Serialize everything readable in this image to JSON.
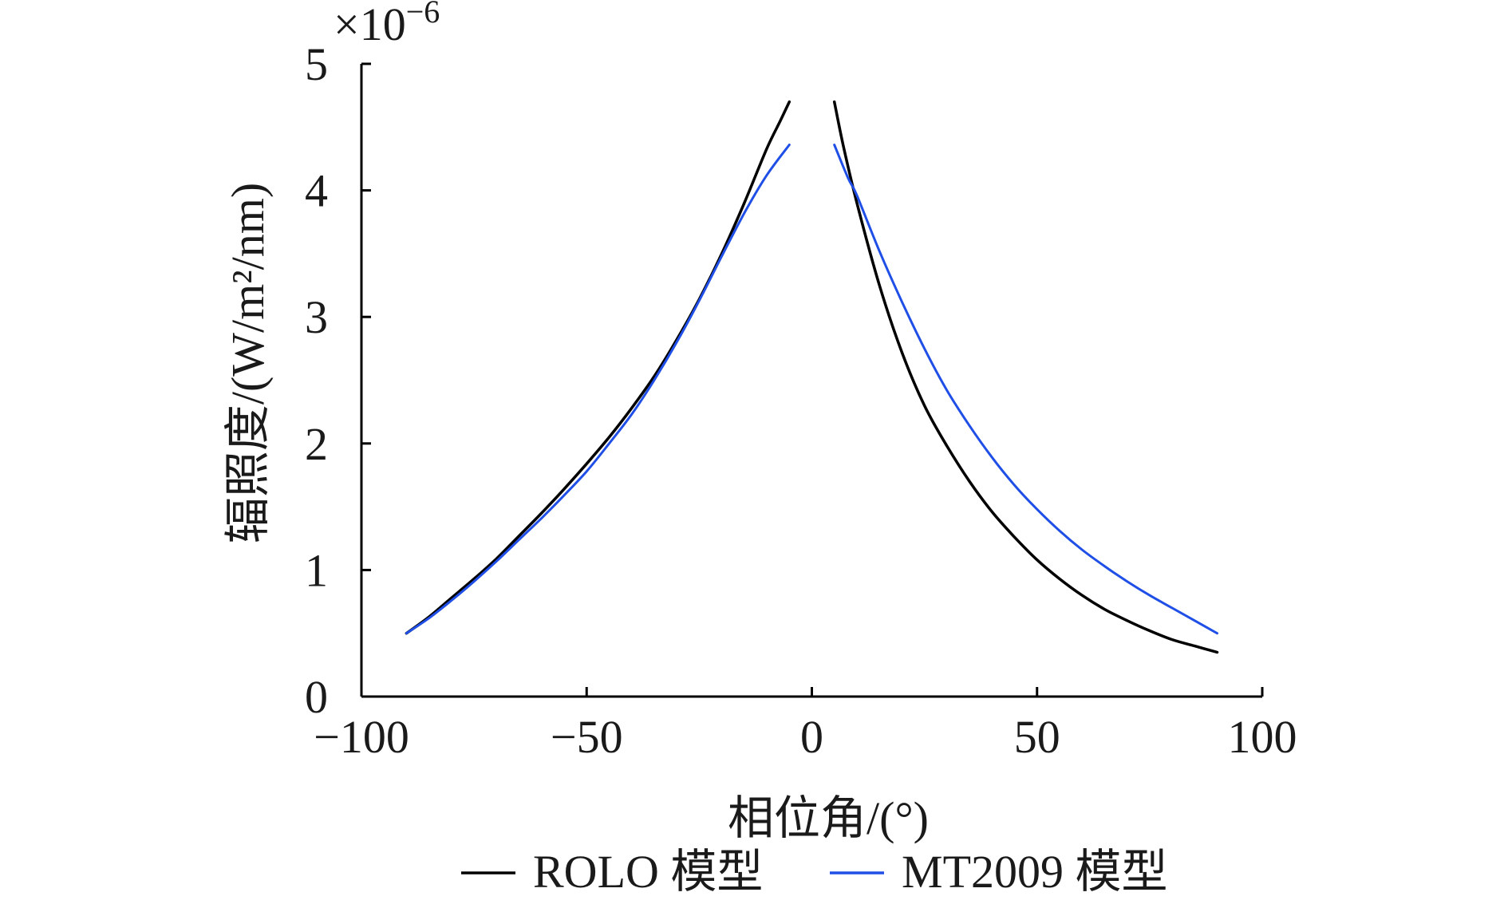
{
  "chart_data": {
    "type": "line",
    "title": "",
    "xlabel": "相位角/(°)",
    "ylabel": "辐照度/(W/m²/nm)",
    "y_multiplier": "×10",
    "y_multiplier_exponent": "−6",
    "xlim": [
      -100,
      100
    ],
    "ylim": [
      0,
      5
    ],
    "x_ticks": [
      -100,
      -50,
      0,
      50,
      100
    ],
    "x_tick_labels": [
      "−100",
      "−50",
      "0",
      "50",
      "100"
    ],
    "y_ticks": [
      0,
      1,
      2,
      3,
      4,
      5
    ],
    "y_tick_labels": [
      "0",
      "1",
      "2",
      "3",
      "4",
      "5"
    ],
    "grid": false,
    "legend_position": "bottom-center",
    "series": [
      {
        "name": "ROLO 模型",
        "color": "#000000",
        "segments": [
          {
            "x": [
              -90,
              -85,
              -80,
              -75,
              -70,
              -65,
              -60,
              -55,
              -50,
              -45,
              -40,
              -35,
              -30,
              -25,
              -20,
              -15,
              -10,
              -7,
              -5
            ],
            "y": [
              0.5,
              0.63,
              0.78,
              0.93,
              1.09,
              1.27,
              1.45,
              1.64,
              1.84,
              2.05,
              2.28,
              2.53,
              2.82,
              3.14,
              3.5,
              3.9,
              4.33,
              4.55,
              4.7
            ]
          },
          {
            "x": [
              5,
              7,
              10,
              15,
              20,
              25,
              30,
              35,
              40,
              45,
              50,
              55,
              60,
              65,
              70,
              75,
              80,
              85,
              90
            ],
            "y": [
              4.7,
              4.35,
              3.9,
              3.25,
              2.72,
              2.3,
              1.98,
              1.7,
              1.46,
              1.26,
              1.08,
              0.93,
              0.8,
              0.69,
              0.6,
              0.52,
              0.45,
              0.4,
              0.35
            ]
          }
        ]
      },
      {
        "name": "MT2009 模型",
        "color": "#1f4fe6",
        "segments": [
          {
            "x": [
              -90,
              -85,
              -80,
              -75,
              -70,
              -65,
              -60,
              -55,
              -50,
              -45,
              -40,
              -35,
              -30,
              -25,
              -20,
              -15,
              -10,
              -5
            ],
            "y": [
              0.5,
              0.62,
              0.76,
              0.91,
              1.07,
              1.24,
              1.41,
              1.59,
              1.78,
              2.0,
              2.23,
              2.5,
              2.8,
              3.13,
              3.48,
              3.82,
              4.12,
              4.36
            ]
          },
          {
            "x": [
              5,
              8,
              10,
              15,
              20,
              25,
              30,
              35,
              40,
              45,
              50,
              55,
              60,
              65,
              70,
              75,
              80,
              85,
              90
            ],
            "y": [
              4.36,
              4.1,
              3.96,
              3.52,
              3.12,
              2.75,
              2.42,
              2.14,
              1.89,
              1.67,
              1.48,
              1.31,
              1.16,
              1.03,
              0.91,
              0.8,
              0.7,
              0.6,
              0.5
            ]
          }
        ]
      }
    ]
  }
}
